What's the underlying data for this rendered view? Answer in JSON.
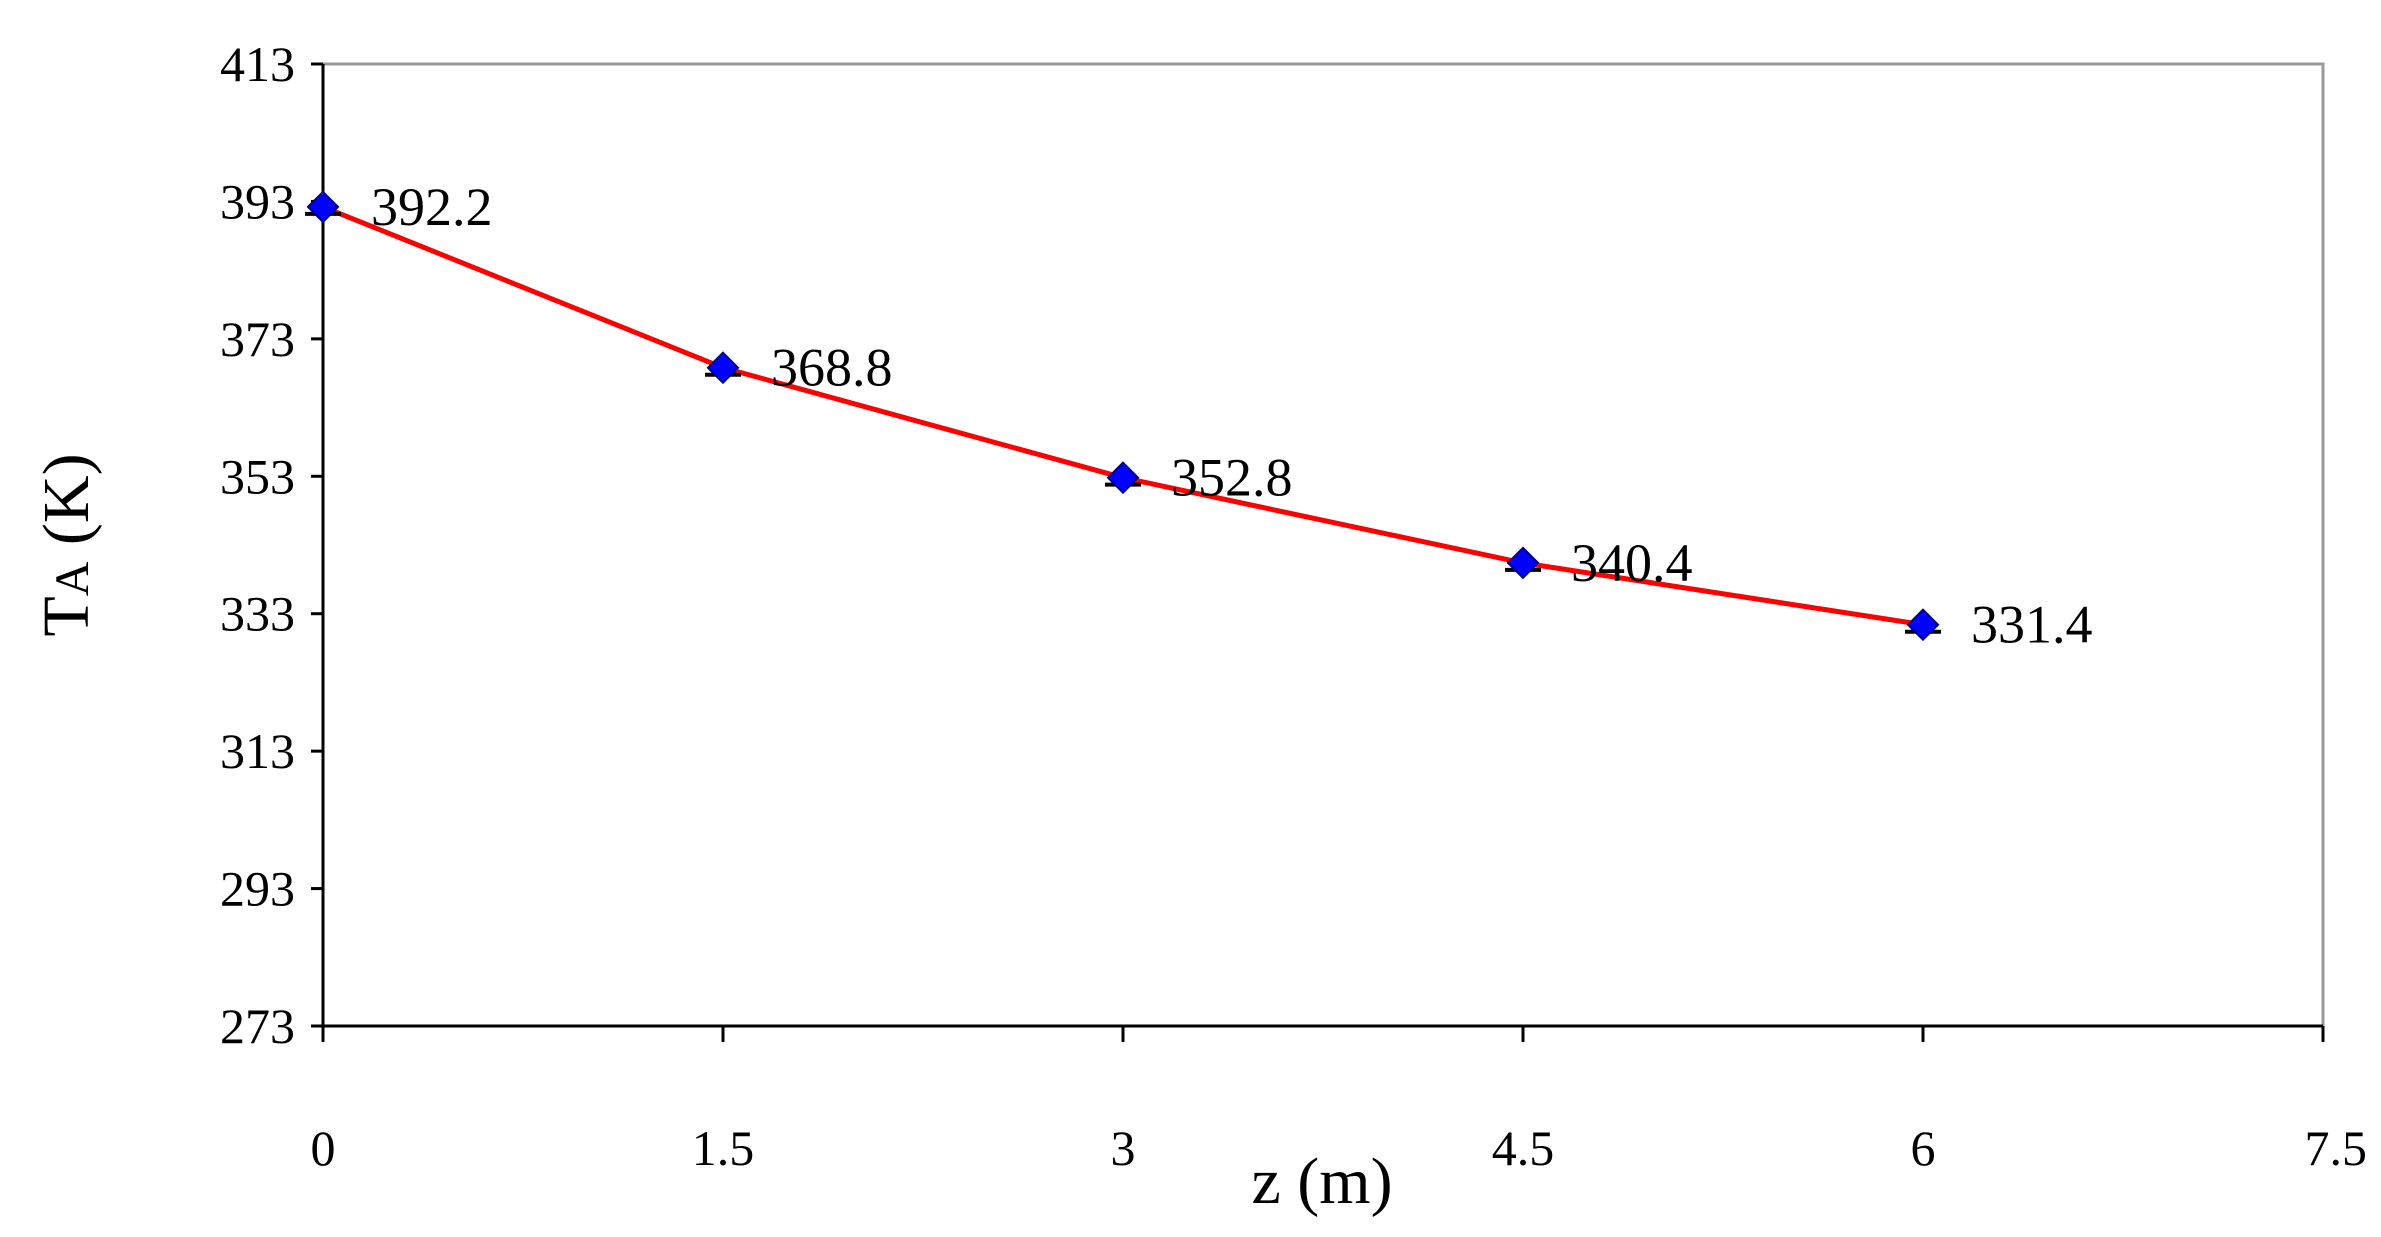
{
  "chart_data": {
    "type": "line",
    "title": "",
    "xlabel": "z (m)",
    "ylabel_main": "T",
    "ylabel_sub": "A",
    "ylabel_unit": " (K)",
    "xlim": [
      0,
      7.5
    ],
    "ylim": [
      273,
      413
    ],
    "x_ticks": [
      0,
      1.5,
      3,
      4.5,
      6,
      7.5
    ],
    "x_tick_labels": [
      "0",
      "1.5",
      "3",
      "4.5",
      "6",
      "7.5"
    ],
    "y_ticks": [
      273,
      293,
      313,
      333,
      353,
      373,
      393,
      413
    ],
    "y_tick_labels": [
      "273",
      "293",
      "313",
      "333",
      "353",
      "373",
      "393",
      "413"
    ],
    "grid": false,
    "legend": "none",
    "series": [
      {
        "x": [
          0,
          1.5,
          3,
          4.5,
          6
        ],
        "values": [
          392.2,
          368.8,
          352.8,
          340.4,
          331.4
        ],
        "data_labels": [
          "392.2",
          "368.8",
          "352.8",
          "340.4",
          "331.4"
        ]
      }
    ],
    "colors": {
      "line": "#ff0000",
      "marker": "#0000ff",
      "marker_edge": "#00008b",
      "error_bar": "#000000",
      "plot_border": "#9a9a9a",
      "axis": "#000000"
    }
  }
}
